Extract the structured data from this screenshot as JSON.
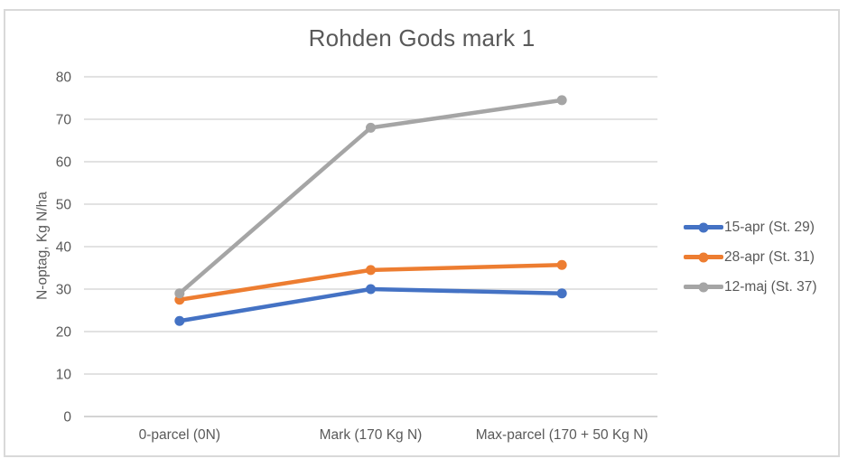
{
  "chart_data": {
    "type": "line",
    "title": "Rohden Gods mark 1",
    "ylabel": "N-optag, Kg N/ha",
    "xlabel": "",
    "categories": [
      "0-parcel (0N)",
      "Mark (170 Kg N)",
      "Max-parcel (170 + 50 Kg N)"
    ],
    "series": [
      {
        "name": "15-apr (St. 29)",
        "color": "#4472C4",
        "values": [
          22.5,
          30,
          29
        ]
      },
      {
        "name": "28-apr (St. 31)",
        "color": "#ED7D31",
        "values": [
          27.5,
          34.5,
          35.7
        ]
      },
      {
        "name": "12-maj (St. 37)",
        "color": "#A5A5A5",
        "values": [
          29,
          68,
          74.5
        ]
      }
    ],
    "ylim": [
      0,
      80
    ],
    "yticks": [
      0,
      10,
      20,
      30,
      40,
      50,
      60,
      70,
      80
    ],
    "grid": true,
    "legend_position": "right",
    "marker": "circle",
    "colors": {
      "gridline": "#D9D9D9",
      "axis_line": "#C6C6C6",
      "text": "#595959",
      "frame_border": "#D9D9D9",
      "background": "#FFFFFF"
    }
  }
}
